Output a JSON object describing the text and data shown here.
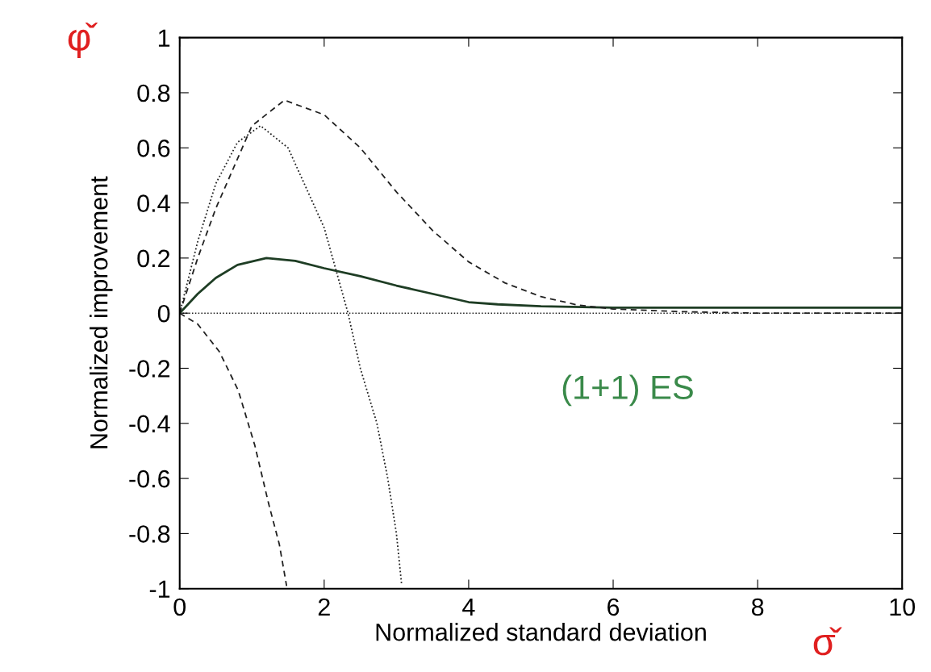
{
  "chart_data": {
    "type": "line",
    "xlabel": "Normalized standard deviation",
    "ylabel": "Normalized improvement",
    "xlim": [
      0,
      10
    ],
    "ylim": [
      -1,
      1
    ],
    "xticks": [
      0,
      2,
      4,
      6,
      8,
      10
    ],
    "yticks": [
      -1,
      -0.8,
      -0.6,
      -0.4,
      -0.2,
      0,
      0.2,
      0.4,
      0.6,
      0.8,
      1
    ],
    "grid": false,
    "legend": false,
    "marker": "none",
    "ref_lines": [
      {
        "axis": "y",
        "value": 0,
        "line_style": "dotted",
        "color": "#222222"
      }
    ],
    "series": [
      {
        "color": "#1e3d24",
        "line_style": "solid",
        "x": [
          0,
          0.25,
          0.5,
          0.8,
          1.2,
          1.6,
          2,
          2.5,
          3,
          3.5,
          4,
          4.4,
          5,
          6,
          7,
          8,
          9,
          10
        ],
        "values": [
          0,
          0.07,
          0.128,
          0.175,
          0.2,
          0.19,
          0.163,
          0.134,
          0.1,
          0.07,
          0.04,
          0.032,
          0.025,
          0.02,
          0.02,
          0.02,
          0.02,
          0.02
        ]
      },
      {
        "color": "#222222",
        "line_style": "dashed",
        "x": [
          0,
          0.25,
          0.55,
          0.81,
          1.04,
          1.23,
          1.38,
          1.48
        ],
        "values": [
          0,
          -0.04,
          -0.14,
          -0.28,
          -0.48,
          -0.69,
          -0.84,
          -0.99
        ]
      },
      {
        "color": "#222222",
        "line_style": "dotted",
        "x": [
          0,
          0.25,
          0.5,
          0.8,
          1.12,
          1.5,
          2,
          2.33,
          2.5,
          2.73,
          2.88,
          3.0,
          3.07
        ],
        "values": [
          0,
          0.26,
          0.47,
          0.62,
          0.68,
          0.6,
          0.31,
          0,
          -0.2,
          -0.4,
          -0.6,
          -0.8,
          -0.98
        ]
      },
      {
        "color": "#222222",
        "line_style": "dashed",
        "x": [
          0,
          0.25,
          0.5,
          1,
          1.45,
          2,
          2.5,
          3,
          3.5,
          4,
          4.5,
          5,
          5.5,
          6,
          7,
          8,
          10
        ],
        "values": [
          0,
          0.2,
          0.38,
          0.68,
          0.773,
          0.72,
          0.6,
          0.44,
          0.3,
          0.186,
          0.11,
          0.06,
          0.03,
          0.015,
          0.005,
          0,
          0
        ]
      }
    ],
    "annotations": [
      "(1+1) ES",
      "φ̌",
      "σ̌"
    ]
  }
}
